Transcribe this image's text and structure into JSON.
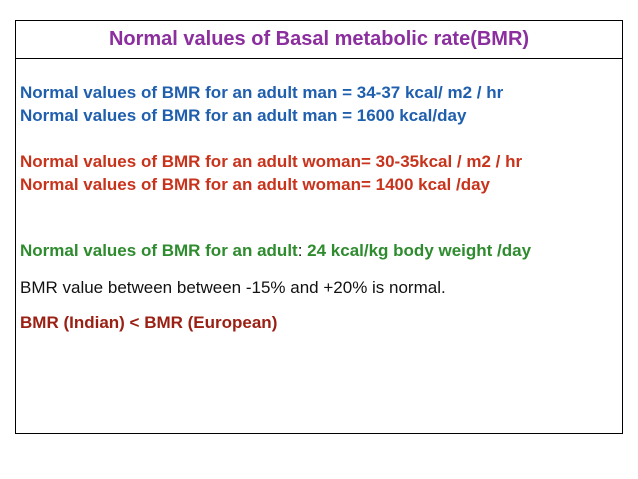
{
  "colors": {
    "title": "#8B2E9E",
    "man": "#1F5FAE",
    "woman": "#C8331C",
    "adult": "#2E8B2E",
    "normal_text": "#111111",
    "comparison": "#9B2014"
  },
  "slide": {
    "title": "Normal values of Basal metabolic rate(BMR)",
    "man_line_1": "Normal values of BMR for an adult man = 34-37 kcal/ m2 / hr",
    "man_line_2": "Normal values of BMR for an adult man = 1600 kcal/day",
    "woman_line_1": "Normal values of BMR for an adult woman= 30-35kcal / m2 / hr",
    "woman_line_2": "Normal values of BMR for an adult woman= 1400 kcal /day",
    "adult_line": {
      "label": "Normal values of BMR for an adult",
      "separator": ": ",
      "value": "24 kcal/kg body weight /day"
    },
    "range_line": "BMR value between between -15% and +20% is normal.",
    "comparison_line": "BMR (Indian) < BMR (European)"
  }
}
